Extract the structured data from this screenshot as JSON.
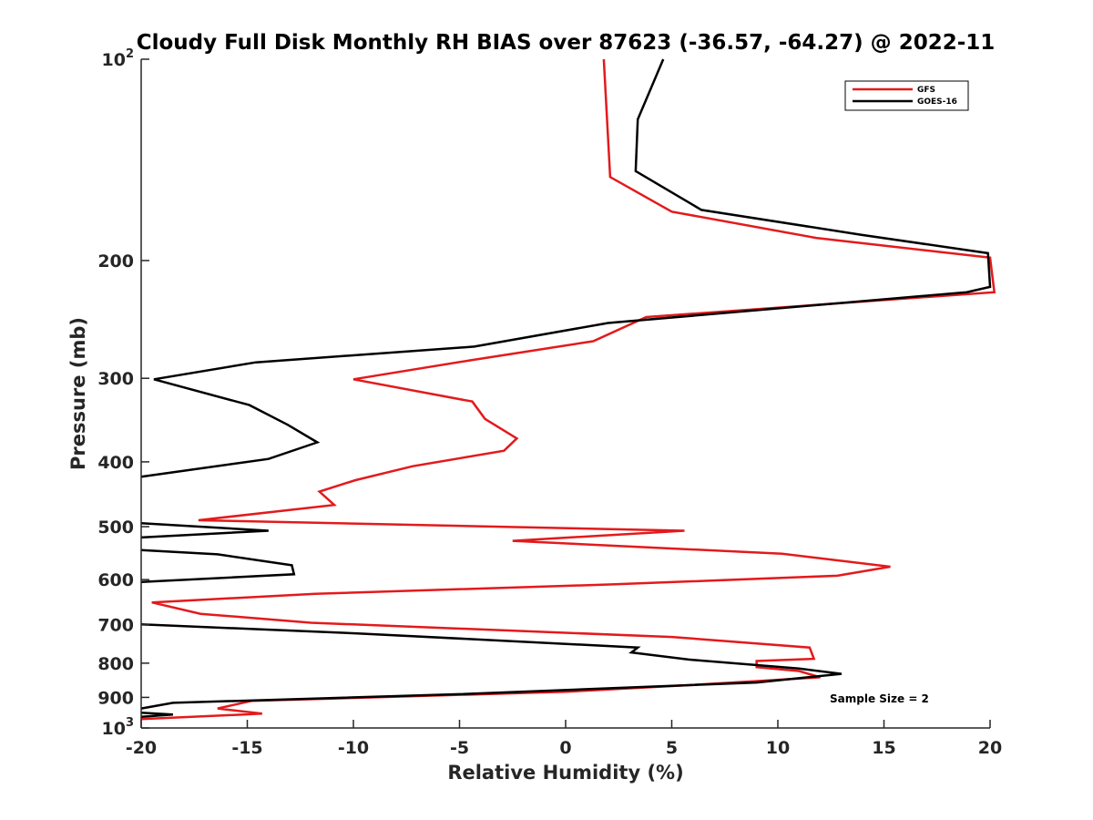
{
  "chart_data": {
    "type": "line",
    "title": "Cloudy Full Disk Monthly RH BIAS over 87623 (-36.57, -64.27) @ 2022-11",
    "xlabel": "Relative Humidity (%)",
    "ylabel": "Pressure (mb)",
    "xlim": [
      -20,
      20
    ],
    "ylim": [
      100,
      1000
    ],
    "yscale": "log",
    "y_reversed": true,
    "x_ticks": [
      "-20",
      "-15",
      "-10",
      "-5",
      "0",
      "5",
      "10",
      "15",
      "20"
    ],
    "y_ticks": [
      {
        "value": 100,
        "base": "10",
        "exp": "2"
      },
      {
        "value": 200,
        "label": "200"
      },
      {
        "value": 300,
        "label": "300"
      },
      {
        "value": 400,
        "label": "400"
      },
      {
        "value": 500,
        "label": "500"
      },
      {
        "value": 600,
        "label": "600"
      },
      {
        "value": 700,
        "label": "700"
      },
      {
        "value": 800,
        "label": "800"
      },
      {
        "value": 900,
        "label": "900"
      },
      {
        "value": 1000,
        "base": "10",
        "exp": "3"
      }
    ],
    "grid": false,
    "legend_position": "top-right",
    "annotation": "Sample Size = 2",
    "series": [
      {
        "name": "GFS",
        "color": "#e31a1c",
        "x": [
          1.8,
          2.1,
          5.0,
          11.8,
          20.0,
          20.2,
          3.8,
          1.3,
          -4.5,
          -10.0,
          -4.4,
          -3.8,
          -2.3,
          -2.9,
          -7.2,
          -9.9,
          -11.6,
          -10.9,
          -17.3,
          5.6,
          -2.5,
          10.2,
          15.3,
          12.8,
          2.2,
          -11.8,
          -19.5,
          -17.2,
          -12.0,
          5.0,
          11.5,
          11.7,
          9.0,
          9.0,
          11.0,
          12.0,
          6.0,
          0.0,
          -14.8,
          -16.4,
          -14.3,
          -20.0
        ],
        "y": [
          100,
          150,
          169,
          185,
          198,
          223,
          243,
          264,
          282,
          301,
          325,
          345,
          369,
          385,
          406,
          426,
          443,
          464,
          489,
          507,
          525,
          549,
          574,
          592,
          610,
          630,
          649,
          675,
          696,
          731,
          758,
          788,
          794,
          811,
          822,
          840,
          862,
          883,
          911,
          935,
          952,
          970
        ]
      },
      {
        "name": "GOES-16",
        "color": "#000000",
        "x": [
          4.6,
          3.4,
          3.3,
          6.4,
          13.9,
          19.9,
          20.0,
          18.9,
          2.0,
          -4.3,
          -14.6,
          -19.4,
          -14.9,
          -13.1,
          -11.7,
          -14.0,
          -20.0,
          null,
          -20.0,
          -14.0,
          -20.0,
          null,
          -20.0,
          -16.4,
          -12.9,
          -12.8,
          -20.0,
          null,
          -20.0,
          -9.8,
          3.4,
          3.1,
          5.8,
          11.0,
          13.0,
          9.0,
          1.0,
          -5.0,
          -18.5,
          -20.0,
          null,
          -20.0,
          -18.5,
          -20.0
        ],
        "y": [
          100,
          123,
          147,
          168,
          183,
          195,
          219,
          223,
          248,
          269,
          284,
          301,
          329,
          352,
          374,
          396,
          421,
          null,
          494,
          507,
          519,
          null,
          542,
          550,
          571,
          589,
          605,
          null,
          700,
          722,
          758,
          771,
          790,
          815,
          830,
          855,
          875,
          890,
          917,
          935,
          null,
          949,
          955,
          962
        ]
      }
    ]
  }
}
